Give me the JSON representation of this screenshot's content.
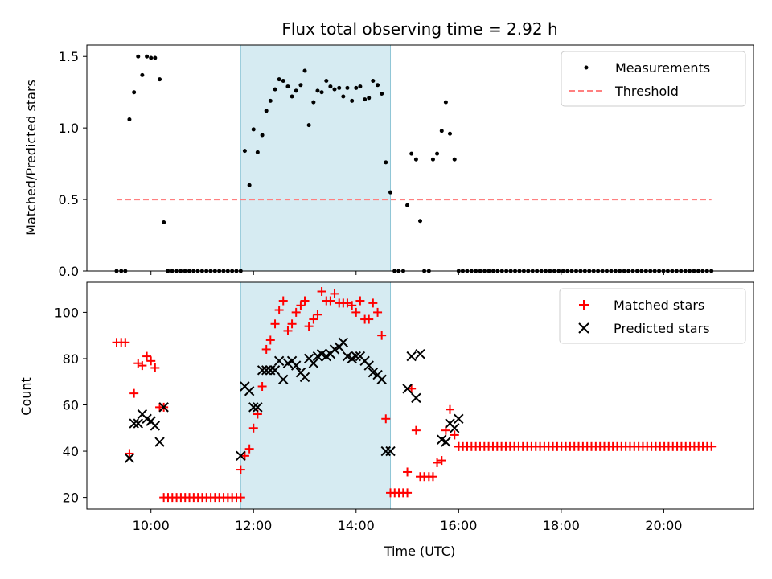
{
  "chart_data": [
    {
      "type": "scatter",
      "title": "Flux total observing time = 2.92 h",
      "xlabel": "",
      "ylabel": "Matched/Predicted stars",
      "xlim": [
        8.75,
        21.75
      ],
      "ylim": [
        0,
        1.58
      ],
      "yticks": [
        0.0,
        0.5,
        1.0,
        1.5
      ],
      "ytick_labels": [
        "0.0",
        "0.5",
        "1.0",
        "1.5"
      ],
      "xticks": [
        10,
        12,
        14,
        16,
        18,
        20
      ],
      "shaded_interval": [
        11.75,
        14.67
      ],
      "legend": {
        "placement": "top-right",
        "entries": [
          "Measurements",
          "Threshold"
        ]
      },
      "threshold": {
        "name": "Threshold",
        "value": 0.5,
        "x_range": [
          9.33,
          20.93
        ],
        "color": "#ff7f7f"
      },
      "series": [
        {
          "name": "Measurements",
          "color": "#000000",
          "x": [
            9.33,
            9.42,
            9.5,
            9.58,
            9.67,
            9.75,
            9.83,
            9.92,
            10.0,
            10.08,
            10.17,
            10.25,
            10.33,
            11.83,
            11.92,
            12.0,
            12.08,
            12.17,
            12.25,
            12.33,
            12.42,
            12.5,
            12.58,
            12.67,
            12.75,
            12.83,
            12.92,
            13.0,
            13.08,
            13.17,
            13.25,
            13.33,
            13.42,
            13.5,
            13.58,
            13.67,
            13.75,
            13.83,
            13.92,
            14.0,
            14.08,
            14.17,
            14.25,
            14.33,
            14.42,
            14.5,
            14.58,
            14.67,
            14.75,
            14.83,
            14.92,
            15.0,
            15.08,
            15.17,
            15.25,
            15.33,
            15.42,
            15.5,
            15.58,
            15.67,
            15.75,
            15.83,
            15.92,
            16.0,
            16.08
          ],
          "y": [
            0,
            0,
            0,
            1.06,
            1.25,
            1.5,
            1.37,
            1.5,
            1.49,
            1.49,
            1.34,
            0.34,
            0,
            0.84,
            0.6,
            0.99,
            0.83,
            0.95,
            1.12,
            1.19,
            1.27,
            1.34,
            1.33,
            1.29,
            1.22,
            1.26,
            1.3,
            1.4,
            1.02,
            1.18,
            1.26,
            1.25,
            1.33,
            1.29,
            1.27,
            1.28,
            1.22,
            1.28,
            1.19,
            1.28,
            1.29,
            1.2,
            1.21,
            1.33,
            1.3,
            1.24,
            0.76,
            0.55,
            0,
            0,
            0,
            0.46,
            0.82,
            0.78,
            0.35,
            0,
            0,
            0.78,
            0.82,
            0.98,
            1.18,
            0.96,
            0.78,
            0,
            0
          ],
          "zero_fill": [
            [
              10.33,
              11.75,
              18
            ],
            [
              16.08,
              20.93,
              58
            ]
          ]
        }
      ]
    },
    {
      "type": "scatter",
      "title": "",
      "xlabel": "Time (UTC)",
      "ylabel": "Count",
      "xlim": [
        8.75,
        21.75
      ],
      "ylim": [
        15,
        113
      ],
      "yticks": [
        20,
        40,
        60,
        80,
        100
      ],
      "ytick_labels": [
        "20",
        "40",
        "60",
        "80",
        "100"
      ],
      "xticks": [
        10,
        12,
        14,
        16,
        18,
        20
      ],
      "xtick_labels": [
        "10:00",
        "12:00",
        "14:00",
        "16:00",
        "18:00",
        "20:00"
      ],
      "shaded_interval": [
        11.75,
        14.67
      ],
      "legend": {
        "placement": "top-right",
        "entries": [
          "Matched stars",
          "Predicted stars"
        ]
      },
      "series": [
        {
          "name": "Matched stars",
          "marker": "plus",
          "color": "#ff0000",
          "x": [
            9.33,
            9.42,
            9.5,
            9.58,
            9.67,
            9.75,
            9.83,
            9.92,
            10.0,
            10.08,
            10.17,
            10.25,
            11.75,
            11.83,
            11.92,
            12.0,
            12.08,
            12.17,
            12.25,
            12.33,
            12.42,
            12.5,
            12.58,
            12.67,
            12.75,
            12.83,
            12.92,
            13.0,
            13.08,
            13.17,
            13.25,
            13.33,
            13.42,
            13.5,
            13.58,
            13.67,
            13.75,
            13.83,
            13.92,
            14.0,
            14.08,
            14.17,
            14.25,
            14.33,
            14.42,
            14.5,
            14.58,
            15.0,
            15.08,
            15.17,
            15.25,
            15.33,
            15.42,
            15.5,
            15.58,
            15.67,
            15.75,
            15.83,
            15.92,
            16.0
          ],
          "y": [
            87,
            87,
            87,
            39,
            65,
            78,
            77,
            81,
            79,
            76,
            59,
            59,
            32,
            38,
            41,
            50,
            56,
            68,
            84,
            88,
            95,
            101,
            105,
            92,
            95,
            100,
            103,
            105,
            94,
            97,
            99,
            109,
            105,
            105,
            108,
            104,
            104,
            104,
            103,
            100,
            105,
            97,
            97,
            104,
            100,
            90,
            54,
            31,
            67,
            49,
            29,
            29,
            29,
            29,
            35,
            36,
            49,
            58,
            47,
            42
          ],
          "zero_fill": [
            [
              10.25,
              11.75,
              20,
              19
            ],
            [
              14.67,
              15.0,
              22,
              5
            ],
            [
              16.0,
              20.93,
              42,
              60
            ]
          ]
        },
        {
          "name": "Predicted stars",
          "marker": "x",
          "color": "#000000",
          "x": [
            9.58,
            9.67,
            9.75,
            9.83,
            9.92,
            10.0,
            10.08,
            10.17,
            10.25,
            11.75,
            11.83,
            11.92,
            12.0,
            12.08,
            12.17,
            12.25,
            12.33,
            12.42,
            12.5,
            12.58,
            12.67,
            12.75,
            12.83,
            12.92,
            13.0,
            13.08,
            13.17,
            13.25,
            13.33,
            13.42,
            13.5,
            13.58,
            13.67,
            13.75,
            13.83,
            13.92,
            14.0,
            14.08,
            14.17,
            14.25,
            14.33,
            14.42,
            14.5,
            14.58,
            14.67,
            15.0,
            15.08,
            15.17,
            15.25,
            15.67,
            15.75,
            15.83,
            15.92,
            16.0
          ],
          "y": [
            37,
            52,
            52,
            56,
            54,
            53,
            51,
            44,
            59,
            38,
            68,
            66,
            59,
            59,
            75,
            75,
            75,
            75,
            79,
            71,
            78,
            79,
            77,
            74,
            72,
            80,
            78,
            81,
            82,
            81,
            82,
            84,
            85,
            87,
            81,
            80,
            81,
            81,
            79,
            77,
            74,
            73,
            71,
            40,
            40,
            67,
            81,
            63,
            82,
            45,
            44,
            52,
            50,
            54
          ]
        }
      ]
    }
  ]
}
